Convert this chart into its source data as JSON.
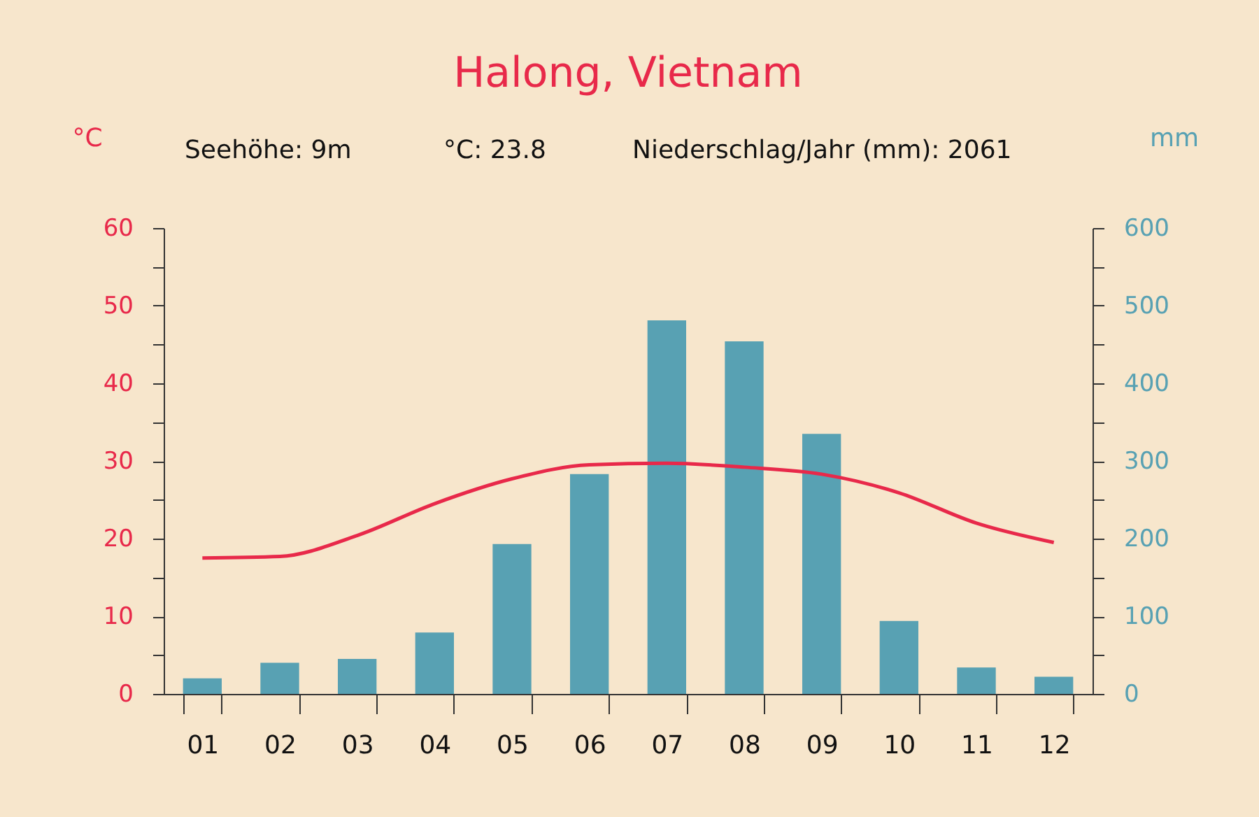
{
  "chart_data": {
    "type": "bar",
    "title": "Halong, Vietnam",
    "ylabel": "°C",
    "y2label": "mm",
    "annotations": [
      "Seehöhe: 9m",
      "°C: 23.8",
      "Niederschlag/Jahr (mm): 2061"
    ],
    "categories": [
      "01",
      "02",
      "03",
      "04",
      "05",
      "06",
      "07",
      "08",
      "09",
      "10",
      "11",
      "12"
    ],
    "series": [
      {
        "axis": "y2",
        "color": "#58a1b3",
        "values": [
          20,
          40,
          45,
          79,
          193,
          283,
          481,
          454,
          335,
          94,
          34,
          22
        ]
      },
      {
        "type": "line",
        "axis": "y",
        "color": "#e8294a",
        "values": [
          17.5,
          17.7,
          20.4,
          24.5,
          27.7,
          29.5,
          29.7,
          29.2,
          28.3,
          25.9,
          22,
          19.5
        ]
      }
    ],
    "ylim": [
      0,
      60
    ],
    "yticks": [
      0,
      {
        "value": 5,
        "label": null
      },
      10,
      {
        "value": 15,
        "label": null
      },
      20,
      {
        "value": 25,
        "label": null
      },
      30,
      {
        "value": 35,
        "label": null
      },
      40,
      {
        "value": 45,
        "label": null
      },
      50,
      {
        "value": 55,
        "label": null
      },
      60
    ],
    "y2lim": [
      0,
      600
    ],
    "y2ticks": [
      0,
      {
        "value": 50,
        "label": null
      },
      100,
      {
        "value": 150,
        "label": null
      },
      200,
      {
        "value": 250,
        "label": null
      },
      300,
      {
        "value": 350,
        "label": null
      },
      400,
      {
        "value": 450,
        "label": null
      },
      500,
      {
        "value": 550,
        "label": null
      },
      600
    ],
    "grid": false,
    "marker": "none",
    "line_style": "solid"
  }
}
